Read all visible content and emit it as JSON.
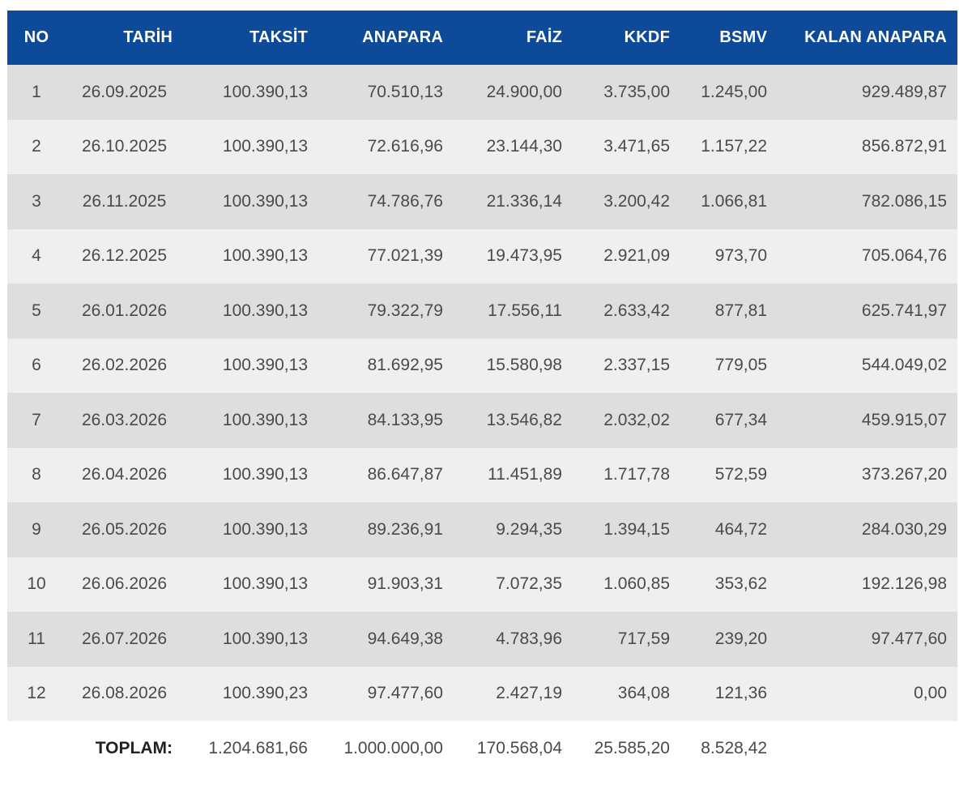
{
  "headers": {
    "no": "NO",
    "tarih": "TARİH",
    "taksit": "TAKSİT",
    "anapara": "ANAPARA",
    "faiz": "FAİZ",
    "kkdf": "KKDF",
    "bsmv": "BSMV",
    "kalan": "KALAN ANAPARA"
  },
  "rows": [
    {
      "no": "1",
      "tarih": "26.09.2025",
      "taksit": "100.390,13",
      "anapara": "70.510,13",
      "faiz": "24.900,00",
      "kkdf": "3.735,00",
      "bsmv": "1.245,00",
      "kalan": "929.489,87"
    },
    {
      "no": "2",
      "tarih": "26.10.2025",
      "taksit": "100.390,13",
      "anapara": "72.616,96",
      "faiz": "23.144,30",
      "kkdf": "3.471,65",
      "bsmv": "1.157,22",
      "kalan": "856.872,91"
    },
    {
      "no": "3",
      "tarih": "26.11.2025",
      "taksit": "100.390,13",
      "anapara": "74.786,76",
      "faiz": "21.336,14",
      "kkdf": "3.200,42",
      "bsmv": "1.066,81",
      "kalan": "782.086,15"
    },
    {
      "no": "4",
      "tarih": "26.12.2025",
      "taksit": "100.390,13",
      "anapara": "77.021,39",
      "faiz": "19.473,95",
      "kkdf": "2.921,09",
      "bsmv": "973,70",
      "kalan": "705.064,76"
    },
    {
      "no": "5",
      "tarih": "26.01.2026",
      "taksit": "100.390,13",
      "anapara": "79.322,79",
      "faiz": "17.556,11",
      "kkdf": "2.633,42",
      "bsmv": "877,81",
      "kalan": "625.741,97"
    },
    {
      "no": "6",
      "tarih": "26.02.2026",
      "taksit": "100.390,13",
      "anapara": "81.692,95",
      "faiz": "15.580,98",
      "kkdf": "2.337,15",
      "bsmv": "779,05",
      "kalan": "544.049,02"
    },
    {
      "no": "7",
      "tarih": "26.03.2026",
      "taksit": "100.390,13",
      "anapara": "84.133,95",
      "faiz": "13.546,82",
      "kkdf": "2.032,02",
      "bsmv": "677,34",
      "kalan": "459.915,07"
    },
    {
      "no": "8",
      "tarih": "26.04.2026",
      "taksit": "100.390,13",
      "anapara": "86.647,87",
      "faiz": "11.451,89",
      "kkdf": "1.717,78",
      "bsmv": "572,59",
      "kalan": "373.267,20"
    },
    {
      "no": "9",
      "tarih": "26.05.2026",
      "taksit": "100.390,13",
      "anapara": "89.236,91",
      "faiz": "9.294,35",
      "kkdf": "1.394,15",
      "bsmv": "464,72",
      "kalan": "284.030,29"
    },
    {
      "no": "10",
      "tarih": "26.06.2026",
      "taksit": "100.390,13",
      "anapara": "91.903,31",
      "faiz": "7.072,35",
      "kkdf": "1.060,85",
      "bsmv": "353,62",
      "kalan": "192.126,98"
    },
    {
      "no": "11",
      "tarih": "26.07.2026",
      "taksit": "100.390,13",
      "anapara": "94.649,38",
      "faiz": "4.783,96",
      "kkdf": "717,59",
      "bsmv": "239,20",
      "kalan": "97.477,60"
    },
    {
      "no": "12",
      "tarih": "26.08.2026",
      "taksit": "100.390,23",
      "anapara": "97.477,60",
      "faiz": "2.427,19",
      "kkdf": "364,08",
      "bsmv": "121,36",
      "kalan": "0,00"
    }
  ],
  "totals": {
    "label": "TOPLAM:",
    "taksit": "1.204.681,66",
    "anapara": "1.000.000,00",
    "faiz": "170.568,04",
    "kkdf": "25.585,20",
    "bsmv": "8.528,42"
  },
  "colors": {
    "header_bg": "#0d4a99",
    "row_odd": "#dedede",
    "row_even": "#efefef"
  }
}
